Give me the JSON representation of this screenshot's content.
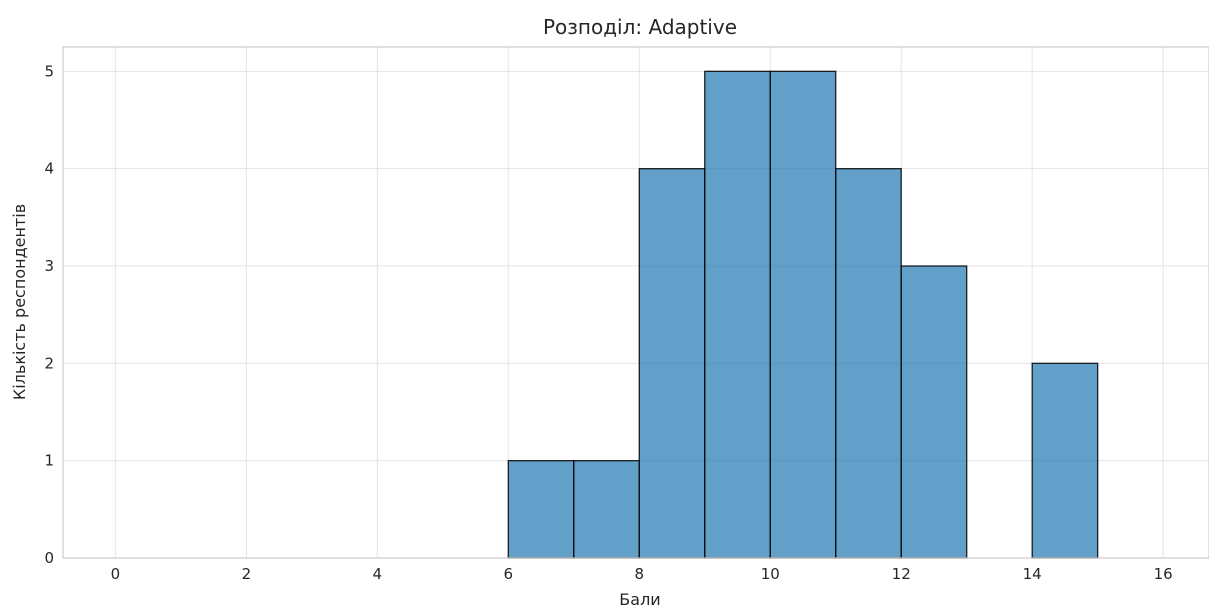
{
  "chart_data": {
    "type": "bar",
    "title": "Розподіл: Adaptive",
    "xlabel": "Бали",
    "ylabel": "Кількість респондентів",
    "xlim": [
      -0.8,
      16.7
    ],
    "ylim": [
      0,
      5.25
    ],
    "xticks": [
      0,
      2,
      4,
      6,
      8,
      10,
      12,
      14,
      16
    ],
    "yticks": [
      0,
      1,
      2,
      3,
      4,
      5
    ],
    "grid": true,
    "bins": [
      {
        "start": 6,
        "end": 7,
        "count": 1
      },
      {
        "start": 7,
        "end": 8,
        "count": 1
      },
      {
        "start": 8,
        "end": 9,
        "count": 4
      },
      {
        "start": 9,
        "end": 10,
        "count": 5
      },
      {
        "start": 10,
        "end": 11,
        "count": 5
      },
      {
        "start": 11,
        "end": 12,
        "count": 4
      },
      {
        "start": 12,
        "end": 13,
        "count": 3
      },
      {
        "start": 14,
        "end": 15,
        "count": 2
      }
    ],
    "colors": {
      "bar": "#1f77b4",
      "edge": "#000000"
    }
  }
}
